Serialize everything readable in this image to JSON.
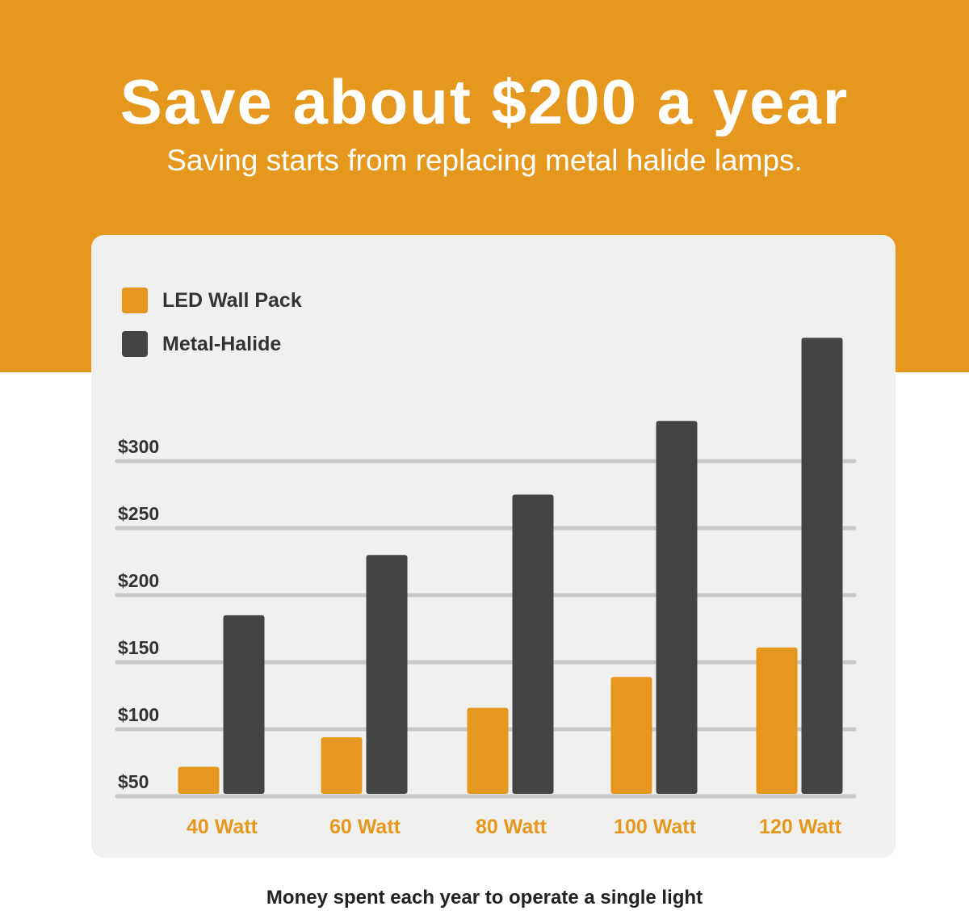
{
  "header": {
    "title": "Save about $200 a year",
    "subtitle": "Saving starts from replacing metal halide lamps."
  },
  "footer": {
    "caption": "Money spent each year to operate a single light"
  },
  "colors": {
    "banner": "#E5981D",
    "led": "#E5981D",
    "metal_halide": "#444444",
    "grid": "#C8C8C8",
    "card": "#F0F0EF"
  },
  "chart_data": {
    "type": "bar",
    "categories": [
      "40 Watt",
      "60 Watt",
      "80 Watt",
      "100 Watt",
      "120 Watt"
    ],
    "series": [
      {
        "name": "LED Wall Pack",
        "color": "#E5981D",
        "values": [
          72,
          94,
          116,
          139,
          161
        ]
      },
      {
        "name": "Metal-Halide",
        "color": "#444444",
        "values": [
          185,
          230,
          275,
          330,
          392
        ]
      }
    ],
    "y_ticks": [
      50,
      100,
      150,
      200,
      250,
      300
    ],
    "y_tick_labels": [
      "$50",
      "$100",
      "$150",
      "$200",
      "$250",
      "$300"
    ],
    "ylim": [
      50,
      392
    ],
    "grid": true,
    "legend_position": "top-left"
  }
}
